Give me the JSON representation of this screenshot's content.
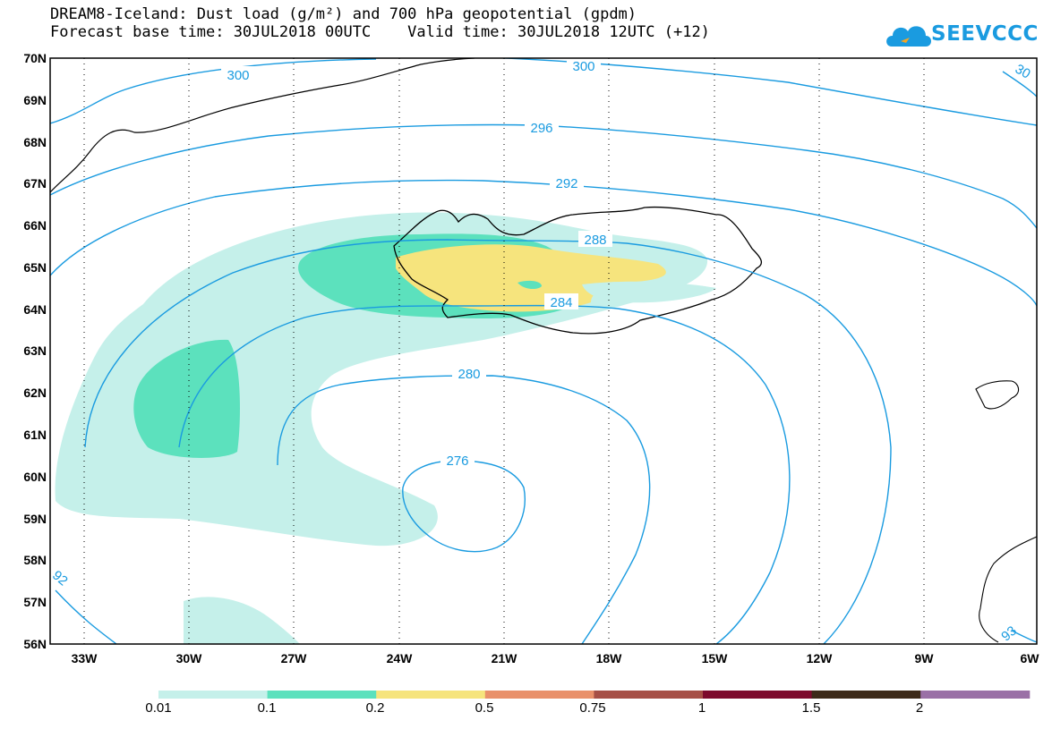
{
  "title": {
    "line1": "DREAM8-Iceland: Dust load (g/m²) and 700 hPa geopotential (gpdm)",
    "line2": "Forecast base time: 30JUL2018 00UTC    Valid time: 30JUL2018 12UTC (+12)"
  },
  "logo": {
    "text": "SEEVCCC"
  },
  "axes": {
    "lat_labels": [
      "70N",
      "69N",
      "68N",
      "67N",
      "66N",
      "65N",
      "64N",
      "63N",
      "62N",
      "61N",
      "60N",
      "59N",
      "58N",
      "57N",
      "56N"
    ],
    "lon_labels": [
      "33W",
      "30W",
      "27W",
      "24W",
      "21W",
      "18W",
      "15W",
      "12W",
      "9W",
      "6W"
    ]
  },
  "contours": {
    "labels": [
      "300",
      "300",
      "296",
      "292",
      "288",
      "284",
      "280",
      "276",
      "92",
      "30",
      "93"
    ]
  },
  "colorbar": {
    "colors": [
      "#c5f0ea",
      "#5ce1bd",
      "#f6e47d",
      "#e9906a",
      "#a64f46",
      "#7d0a2d",
      "#3d2a19",
      "#9a70a6"
    ],
    "labels": [
      "0.01",
      "0.1",
      "0.2",
      "0.5",
      "0.75",
      "1",
      "1.5",
      "2"
    ]
  }
}
